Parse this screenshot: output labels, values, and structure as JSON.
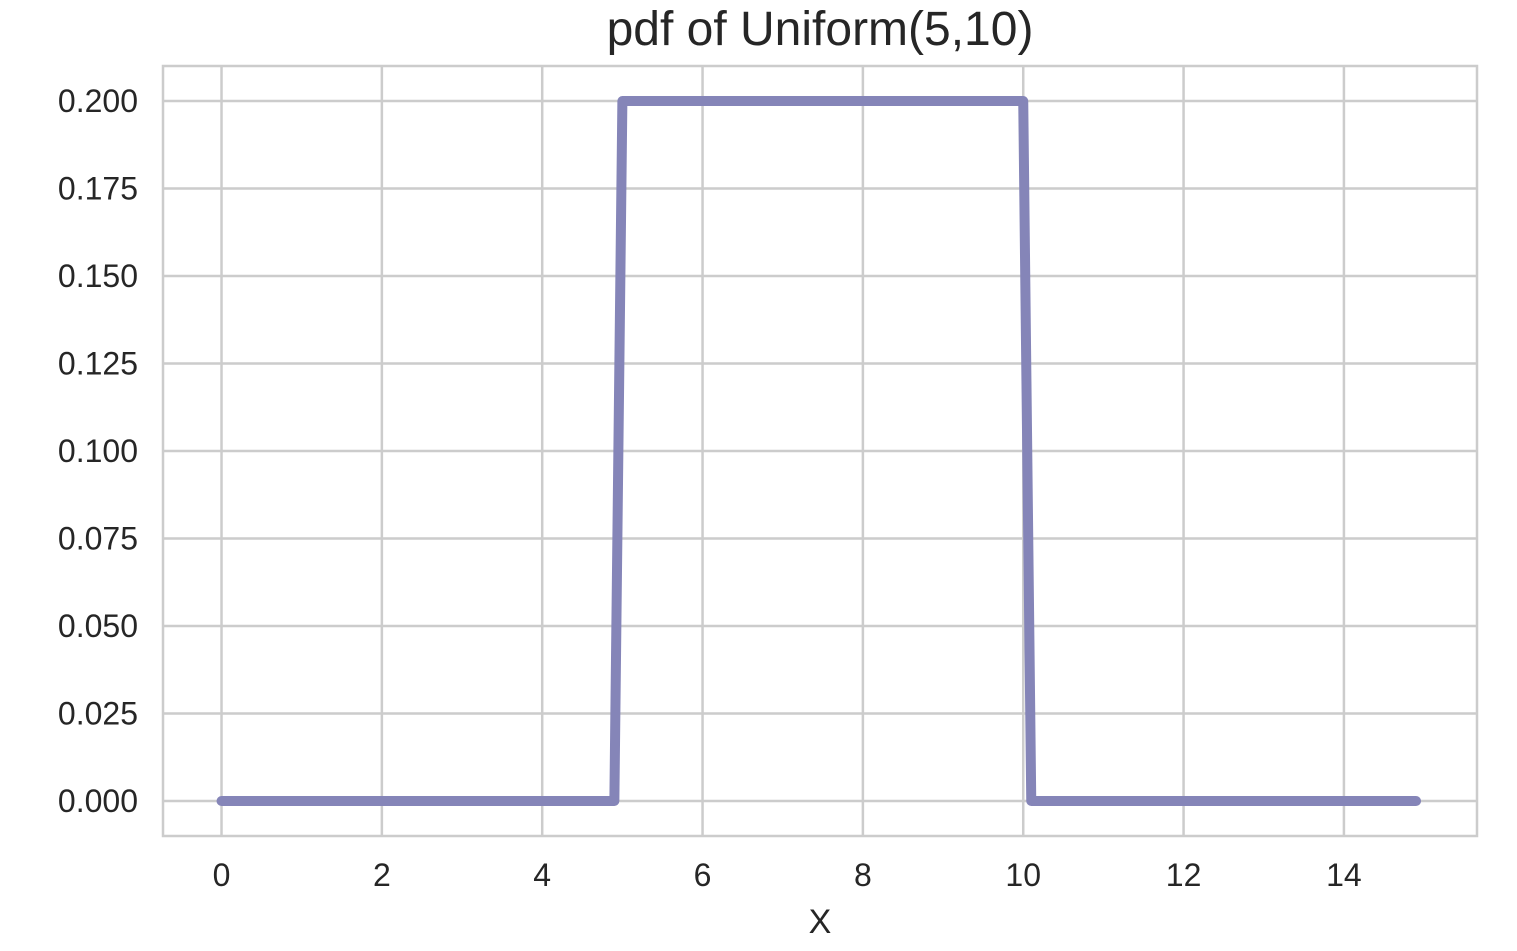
{
  "chart_data": {
    "type": "line",
    "title": "pdf of Uniform(5,10)",
    "xlabel": "X",
    "ylabel": "",
    "xlim": [
      -0.73,
      15.66
    ],
    "ylim": [
      -0.01,
      0.21
    ],
    "x_ticks": [
      0,
      2,
      4,
      6,
      8,
      10,
      12,
      14
    ],
    "x_tick_labels": [
      "0",
      "2",
      "4",
      "6",
      "8",
      "10",
      "12",
      "14"
    ],
    "y_ticks": [
      0.0,
      0.025,
      0.05,
      0.075,
      0.1,
      0.125,
      0.15,
      0.175,
      0.2
    ],
    "y_tick_labels": [
      "0.000",
      "0.025",
      "0.050",
      "0.075",
      "0.100",
      "0.125",
      "0.150",
      "0.175",
      "0.200"
    ],
    "grid": true,
    "legend": "none",
    "series": [
      {
        "color": "#8585b8",
        "x": [
          0,
          4.9,
          5.0,
          10.0,
          10.1,
          14.9
        ],
        "y": [
          0,
          0,
          0.2,
          0.2,
          0,
          0
        ]
      }
    ]
  }
}
